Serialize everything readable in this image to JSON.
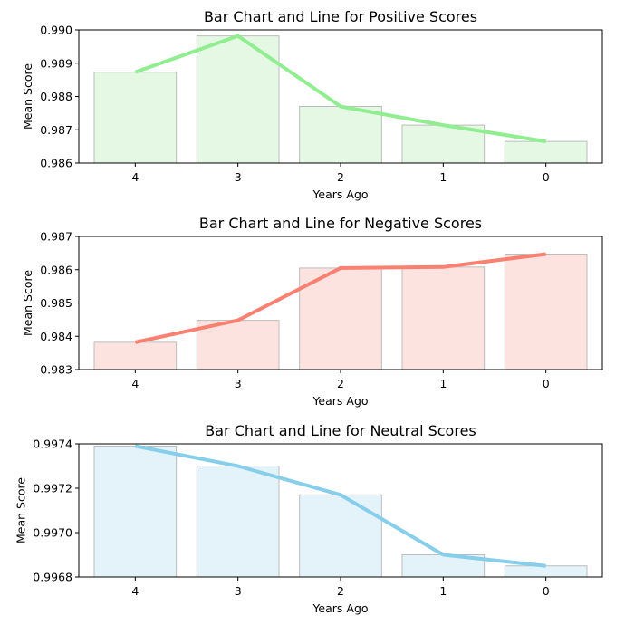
{
  "chart_data": [
    {
      "type": "bar",
      "title": "Bar Chart and Line for Positive Scores",
      "xlabel": "Years Ago",
      "ylabel": "Mean Score",
      "categories": [
        "4",
        "3",
        "2",
        "1",
        "0"
      ],
      "values": [
        0.98873,
        0.98982,
        0.9877,
        0.98714,
        0.98665
      ],
      "ylim": [
        0.986,
        0.99
      ],
      "yticks": [
        "0.986",
        "0.987",
        "0.988",
        "0.989",
        "0.990"
      ],
      "bar_color": "#e4f8e4",
      "line_color": "#90ee90",
      "grid": false
    },
    {
      "type": "bar",
      "title": "Bar Chart and Line for Negative Scores",
      "xlabel": "Years Ago",
      "ylabel": "Mean Score",
      "categories": [
        "4",
        "3",
        "2",
        "1",
        "0"
      ],
      "values": [
        0.98382,
        0.98448,
        0.98605,
        0.98608,
        0.98647
      ],
      "ylim": [
        0.983,
        0.987
      ],
      "yticks": [
        "0.983",
        "0.984",
        "0.985",
        "0.986",
        "0.987"
      ],
      "bar_color": "#fde3e0",
      "line_color": "#fa8072",
      "grid": false
    },
    {
      "type": "bar",
      "title": "Bar Chart and Line for Neutral Scores",
      "xlabel": "Years Ago",
      "ylabel": "Mean Score",
      "categories": [
        "4",
        "3",
        "2",
        "1",
        "0"
      ],
      "values": [
        0.99739,
        0.9973,
        0.99717,
        0.9969,
        0.99685
      ],
      "ylim": [
        0.9968,
        0.9974
      ],
      "yticks": [
        "0.9968",
        "0.9970",
        "0.9972",
        "0.9974"
      ],
      "bar_color": "#e4f3f9",
      "line_color": "#87ceeb",
      "grid": false
    }
  ]
}
